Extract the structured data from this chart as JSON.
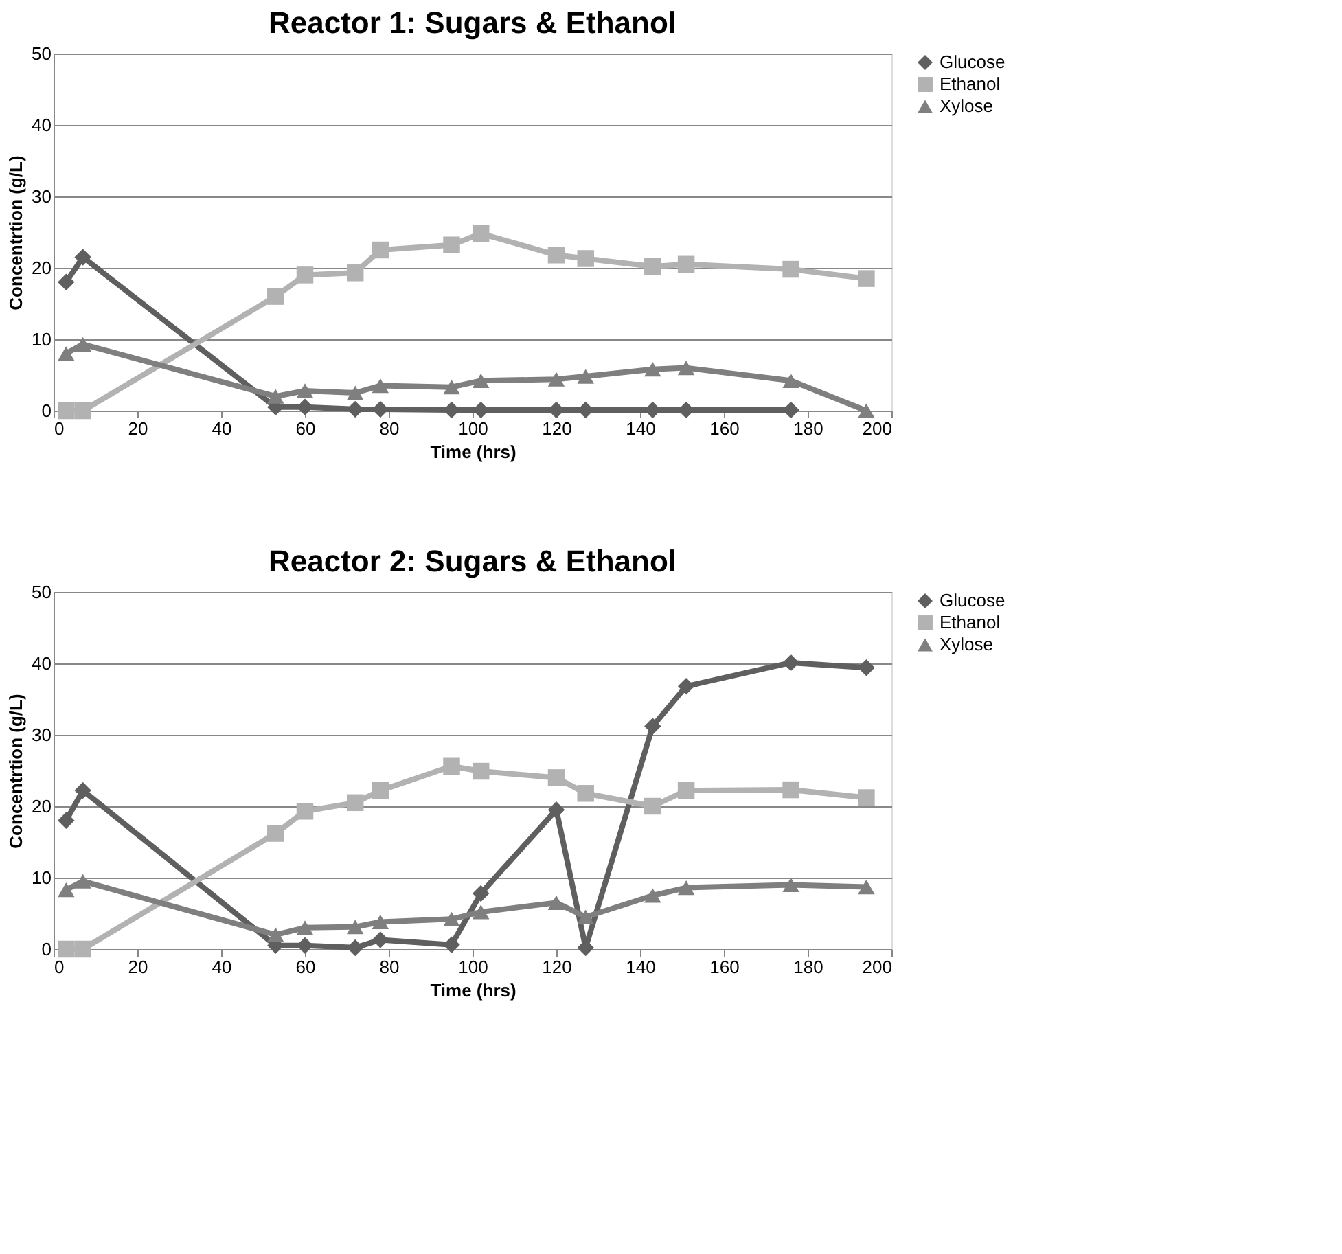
{
  "chart_data": [
    {
      "type": "line",
      "title": "Reactor 1: Sugars & Ethanol",
      "xlabel": "Time (hrs)",
      "ylabel": "Concentrtion (g/L)",
      "x": [
        3,
        7,
        53,
        60,
        72,
        78,
        95,
        102,
        120,
        127,
        143,
        151,
        176,
        194
      ],
      "series": [
        {
          "name": "Glucose",
          "color": "#5f5f5f",
          "marker": "diamond",
          "values": [
            18,
            21.5,
            0.5,
            0.5,
            0.2,
            0.2,
            0.1,
            0.1,
            0.1,
            0.1,
            0.1,
            0.1,
            0.1,
            null
          ]
        },
        {
          "name": "Ethanol",
          "color": "#b2b2b2",
          "marker": "square",
          "values": [
            0,
            0,
            16,
            19,
            19.3,
            22.5,
            23.2,
            24.8,
            21.8,
            21.3,
            20.2,
            20.5,
            19.8,
            18.5
          ]
        },
        {
          "name": "Xylose",
          "color": "#7f7f7f",
          "marker": "triangle",
          "values": [
            8,
            9.3,
            2,
            2.8,
            2.5,
            3.5,
            3.3,
            4.2,
            4.4,
            4.8,
            5.8,
            6,
            4.2,
            0
          ]
        }
      ],
      "xlim": [
        0,
        200
      ],
      "xticks": [
        0,
        20,
        40,
        60,
        80,
        100,
        120,
        140,
        160,
        180,
        200
      ],
      "ylim": [
        0,
        50
      ],
      "yticks": [
        0,
        10,
        20,
        30,
        40,
        50
      ],
      "grid": "y",
      "legend": "right"
    },
    {
      "type": "line",
      "title": "Reactor 2: Sugars & Ethanol",
      "xlabel": "Time (hrs)",
      "ylabel": "Concentrtion (g/L)",
      "x": [
        3,
        7,
        53,
        60,
        72,
        78,
        95,
        102,
        120,
        127,
        143,
        151,
        176,
        194
      ],
      "series": [
        {
          "name": "Glucose",
          "color": "#5f5f5f",
          "marker": "diamond",
          "values": [
            18,
            22.2,
            0.5,
            0.5,
            0.2,
            1.3,
            0.6,
            7.8,
            19.5,
            0.2,
            31.2,
            36.8,
            40.1,
            39.4
          ]
        },
        {
          "name": "Ethanol",
          "color": "#b2b2b2",
          "marker": "square",
          "values": [
            0,
            0,
            16.2,
            19.3,
            20.5,
            22.2,
            25.6,
            24.9,
            24,
            21.8,
            20,
            22.2,
            22.3,
            21.2
          ]
        },
        {
          "name": "Xylose",
          "color": "#7f7f7f",
          "marker": "triangle",
          "values": [
            8.3,
            9.5,
            2,
            3,
            3.1,
            3.8,
            4.2,
            5.2,
            6.5,
            4.5,
            7.5,
            8.6,
            9,
            8.7
          ]
        }
      ],
      "xlim": [
        0,
        200
      ],
      "xticks": [
        0,
        20,
        40,
        60,
        80,
        100,
        120,
        140,
        160,
        180,
        200
      ],
      "ylim": [
        0,
        50
      ],
      "yticks": [
        0,
        10,
        20,
        30,
        40,
        50
      ],
      "grid": "y",
      "legend": "right"
    }
  ]
}
